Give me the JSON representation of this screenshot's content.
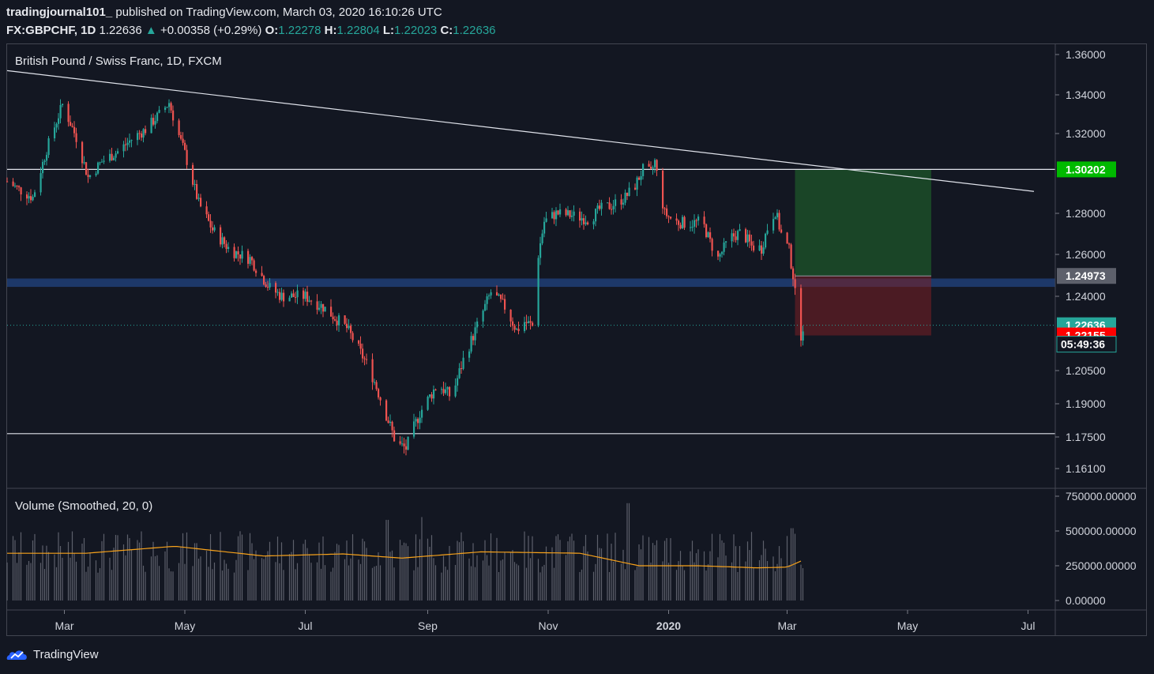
{
  "header": {
    "author": "tradingjournal101_",
    "published": "published on TradingView.com, March 03, 2020 16:10:26 UTC",
    "symbol": "FX:GBPCHF, 1D",
    "last": "1.22636",
    "change": "+0.00358 (+0.29%)",
    "o_label": "O:",
    "o_value": "1.22278",
    "h_label": "H:",
    "h_value": "1.22804",
    "l_label": "L:",
    "l_value": "1.22023",
    "c_label": "C:",
    "c_value": "1.22636"
  },
  "pane_title": "British Pound / Swiss Franc, 1D, FXCM",
  "volume_title": "Volume (Smoothed, 20, 0)",
  "footer": {
    "brand": "TradingView"
  },
  "colors": {
    "bg": "#131722",
    "up": "#26a69a",
    "down": "#ef5350",
    "volume_ma": "#f7a21b",
    "zone": "#1d3a6e"
  },
  "chart_data": {
    "type": "candlestick",
    "price_axis_labels": [
      "1.36000",
      "1.34000",
      "1.32000",
      "1.28000",
      "1.26000",
      "1.24000",
      "1.20500",
      "1.19000",
      "1.17500",
      "1.16100"
    ],
    "price_axis_values": [
      1.36,
      1.34,
      1.32,
      1.28,
      1.26,
      1.24,
      1.205,
      1.19,
      1.175,
      1.161
    ],
    "volume_axis_labels": [
      "750000.00000",
      "500000.00000",
      "250000.00000",
      "0.00000"
    ],
    "volume_axis_values": [
      750000,
      500000,
      250000,
      0
    ],
    "x_labels": [
      "Mar",
      "May",
      "Jul",
      "Sep",
      "Nov",
      "2020",
      "Mar",
      "May",
      "Jul"
    ],
    "x_label_days": [
      29,
      90,
      151,
      213,
      274,
      335,
      395,
      456,
      517
    ],
    "start": "2019-01-31",
    "end": "2020-03-03",
    "knots": [
      [
        0,
        1.296
      ],
      [
        6,
        1.292
      ],
      [
        13,
        1.288
      ],
      [
        20,
        1.312
      ],
      [
        28,
        1.335
      ],
      [
        35,
        1.318
      ],
      [
        41,
        1.298
      ],
      [
        48,
        1.306
      ],
      [
        56,
        1.311
      ],
      [
        64,
        1.318
      ],
      [
        70,
        1.322
      ],
      [
        78,
        1.331
      ],
      [
        82,
        1.336
      ],
      [
        86,
        1.322
      ],
      [
        90,
        1.31
      ],
      [
        97,
        1.285
      ],
      [
        104,
        1.272
      ],
      [
        113,
        1.262
      ],
      [
        123,
        1.258
      ],
      [
        133,
        1.244
      ],
      [
        139,
        1.24
      ],
      [
        151,
        1.24
      ],
      [
        160,
        1.235
      ],
      [
        172,
        1.225
      ],
      [
        184,
        1.205
      ],
      [
        192,
        1.185
      ],
      [
        197,
        1.172
      ],
      [
        202,
        1.17
      ],
      [
        209,
        1.186
      ],
      [
        218,
        1.199
      ],
      [
        225,
        1.193
      ],
      [
        231,
        1.21
      ],
      [
        238,
        1.226
      ],
      [
        245,
        1.242
      ],
      [
        252,
        1.235
      ],
      [
        258,
        1.224
      ],
      [
        262,
        1.228
      ],
      [
        266,
        1.226
      ],
      [
        269,
        1.26
      ],
      [
        272,
        1.276
      ],
      [
        278,
        1.28
      ],
      [
        286,
        1.279
      ],
      [
        295,
        1.277
      ],
      [
        300,
        1.282
      ],
      [
        306,
        1.284
      ],
      [
        313,
        1.288
      ],
      [
        318,
        1.294
      ],
      [
        322,
        1.302
      ],
      [
        326,
        1.3
      ],
      [
        328,
        1.306
      ],
      [
        330,
        1.294
      ],
      [
        333,
        1.28
      ],
      [
        338,
        1.276
      ],
      [
        345,
        1.275
      ],
      [
        352,
        1.276
      ],
      [
        356,
        1.266
      ],
      [
        360,
        1.258
      ],
      [
        366,
        1.268
      ],
      [
        372,
        1.271
      ],
      [
        377,
        1.264
      ],
      [
        382,
        1.263
      ],
      [
        386,
        1.276
      ],
      [
        389,
        1.281
      ],
      [
        392,
        1.27
      ],
      [
        396,
        1.262
      ],
      [
        398,
        1.25
      ],
      [
        400,
        1.232
      ],
      [
        402,
        1.222
      ],
      [
        403,
        1.226
      ]
    ],
    "trendlines": [
      {
        "kind": "diagonal",
        "from": [
          0,
          1.352
        ],
        "to": [
          520,
          1.291
        ]
      },
      {
        "kind": "horizontal",
        "value": 1.30202
      },
      {
        "kind": "horizontal",
        "value": 1.1765
      }
    ],
    "zone": {
      "from": 1.2485,
      "to": 1.2445
    },
    "position": {
      "entry": 1.24973,
      "target": 1.30202,
      "stop": 1.22155,
      "from_day": 399,
      "to_day": 468
    },
    "current_price": 1.22636,
    "price_tags": [
      {
        "label": "1.30202",
        "value": 1.30202,
        "color": "#00b900",
        "text": "#ffffff"
      },
      {
        "label": "1.24973",
        "value": 1.24973,
        "color": "#5d606b",
        "text": "#ffffff"
      },
      {
        "label": "1.22636",
        "value": 1.22636,
        "color": "#26a69a",
        "text": "#ffffff"
      },
      {
        "label": "1.22155",
        "value": 1.22155,
        "color": "#ff0000",
        "text": "#ffffff"
      }
    ],
    "countdown": "05:49:36",
    "volume_ma_knots": [
      [
        0,
        340000
      ],
      [
        40,
        340000
      ],
      [
        85,
        390000
      ],
      [
        130,
        320000
      ],
      [
        170,
        335000
      ],
      [
        200,
        305000
      ],
      [
        240,
        350000
      ],
      [
        290,
        340000
      ],
      [
        320,
        250000
      ],
      [
        350,
        250000
      ],
      [
        380,
        235000
      ],
      [
        395,
        240000
      ],
      [
        403,
        290000
      ]
    ],
    "volume_spikes": [
      [
        192,
        580000
      ],
      [
        211,
        600000
      ],
      [
        315,
        700000
      ],
      [
        398,
        520000
      ],
      [
        400,
        480000
      ]
    ]
  }
}
